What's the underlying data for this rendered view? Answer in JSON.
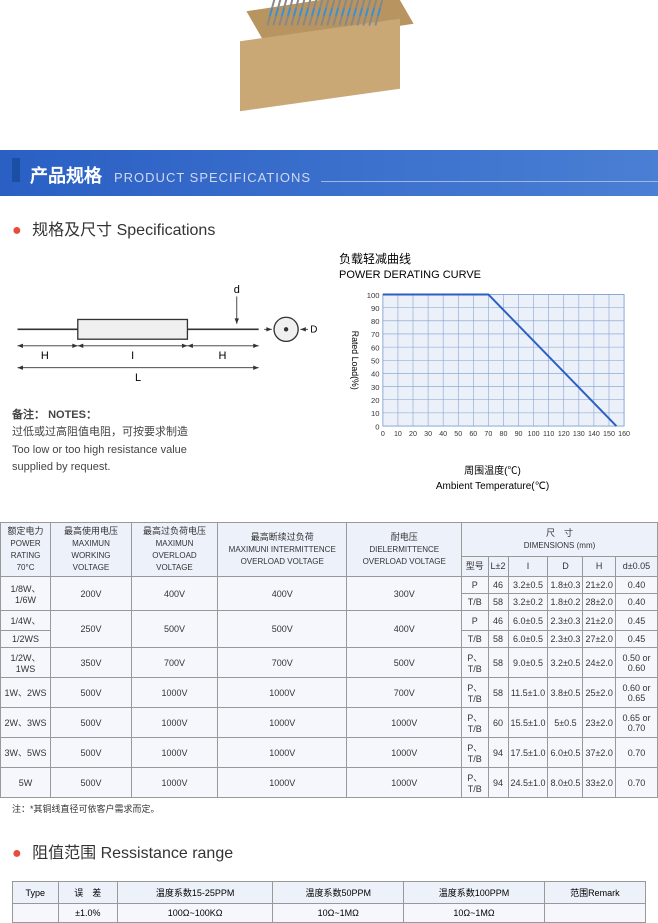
{
  "header": {
    "cn": "产品规格",
    "en": "PRODUCT SPECIFICATIONS"
  },
  "section1": {
    "title_cn": "规格及尺寸",
    "title_en": "Specifications"
  },
  "diagram": {
    "labels": {
      "H": "H",
      "I": "I",
      "L": "L",
      "d": "d",
      "D": "D"
    }
  },
  "notes": {
    "label_cn": "备注：",
    "label_en": "NOTES：",
    "line1_cn": "过低或过高阻值电阻，可按要求制造",
    "line2_en": "Too low or too high resistance value",
    "line3_en": "supplied by request."
  },
  "chart": {
    "title_cn": "负载轻减曲线",
    "title_en": "POWER DERATING CURVE",
    "ylabel": "Rated Load(%)",
    "xlabel_cn": "周围温度(℃)",
    "xlabel_en": "Ambient Temperature(℃)",
    "xlim": [
      0,
      160
    ],
    "ylim": [
      0,
      100
    ],
    "xticks": [
      0,
      10,
      20,
      30,
      40,
      50,
      60,
      70,
      80,
      90,
      100,
      110,
      120,
      130,
      140,
      150,
      160
    ],
    "yticks": [
      0,
      10,
      20,
      30,
      40,
      50,
      60,
      70,
      80,
      90,
      100
    ],
    "line_points": [
      [
        0,
        100
      ],
      [
        70,
        100
      ],
      [
        155,
        0
      ]
    ],
    "grid_color": "#7a9fd0",
    "line_color": "#2a5fc4",
    "bg_color": "#ecf0f9"
  },
  "mainTable": {
    "headers": {
      "power": {
        "cn": "额定电力",
        "en": "POWER RATING",
        "sub": "70°C"
      },
      "maxwork": {
        "cn": "最高使用电压",
        "en": "MAXIMUN WORKING VOLTAGE"
      },
      "maxover": {
        "cn": "最高过负荷电压",
        "en": "MAXIMUN OVERLOAD VOLTAGE"
      },
      "maxint": {
        "cn": "最高断续过负荷",
        "en": "MAXIMUNI INTERMITTENCE OVERLOAD VOLTAGE"
      },
      "diel": {
        "cn": "耐电压",
        "en": "DIELERMITTENCE OVERLOAD VOLTAGE"
      },
      "dim": {
        "cn": "尺　寸",
        "en": "DIMENSIONS  (mm)"
      },
      "dim_sub": [
        "型号",
        "L±2",
        "I",
        "D",
        "H",
        "d±0.05"
      ]
    },
    "rows": [
      {
        "power": "1/8W、1/6W",
        "v1": "200V",
        "v2": "400V",
        "v3": "400V",
        "v4": "300V",
        "dims": [
          [
            "P",
            "46",
            "3.2±0.5",
            "1.8±0.3",
            "21±2.0",
            "0.40"
          ],
          [
            "T/B",
            "58",
            "3.2±0.2",
            "1.8±0.2",
            "28±2.0",
            "0.40"
          ]
        ]
      },
      {
        "power": "1/4W、",
        "power2": "1/2WS",
        "v1": "250V",
        "v2": "500V",
        "v3": "500V",
        "v4": "400V",
        "dims": [
          [
            "P",
            "46",
            "6.0±0.5",
            "2.3±0.3",
            "21±2.0",
            "0.45"
          ],
          [
            "T/B",
            "58",
            "6.0±0.5",
            "2.3±0.3",
            "27±2.0",
            "0.45"
          ]
        ]
      },
      {
        "power": "1/2W、1WS",
        "v1": "350V",
        "v2": "700V",
        "v3": "700V",
        "v4": "500V",
        "dims": [
          [
            "P、T/B",
            "58",
            "9.0±0.5",
            "3.2±0.5",
            "24±2.0",
            "0.50 or 0.60"
          ]
        ]
      },
      {
        "power": "1W、2WS",
        "v1": "500V",
        "v2": "1000V",
        "v3": "1000V",
        "v4": "700V",
        "dims": [
          [
            "P、T/B",
            "58",
            "11.5±1.0",
            "3.8±0.5",
            "25±2.0",
            "0.60 or 0.65"
          ]
        ]
      },
      {
        "power": "2W、3WS",
        "v1": "500V",
        "v2": "1000V",
        "v3": "1000V",
        "v4": "1000V",
        "dims": [
          [
            "P、T/B",
            "60",
            "15.5±1.0",
            "5±0.5",
            "23±2.0",
            "0.65 or 0.70"
          ]
        ]
      },
      {
        "power": "3W、5WS",
        "v1": "500V",
        "v2": "1000V",
        "v3": "1000V",
        "v4": "1000V",
        "dims": [
          [
            "P、T/B",
            "94",
            "17.5±1.0",
            "6.0±0.5",
            "37±2.0",
            "0.70"
          ]
        ]
      },
      {
        "power": "5W",
        "v1": "500V",
        "v2": "1000V",
        "v3": "1000V",
        "v4": "1000V",
        "dims": [
          [
            "P、T/B",
            "94",
            "24.5±1.0",
            "8.0±0.5",
            "33±2.0",
            "0.70"
          ]
        ]
      }
    ],
    "note": "注：*其铜线直径可依客户需求而定。"
  },
  "section2": {
    "title_cn": "阻值范围",
    "title_en": "Ressistance range"
  },
  "resTable": {
    "headers": [
      "Type",
      "误　差",
      "温度系数15-25PPM",
      "温度系数50PPM",
      "温度系数100PPM",
      "范围Remark"
    ],
    "row1": [
      "",
      "±1.0%",
      "100Ω~100KΩ",
      "10Ω~1MΩ",
      "10Ω~1MΩ",
      ""
    ]
  },
  "colors": {
    "header_blue": "#2a5fc4",
    "red_dot": "#e74c3c",
    "table_bg": "#f5f7fc",
    "table_head_bg": "#edf1fa",
    "border": "#999999"
  }
}
